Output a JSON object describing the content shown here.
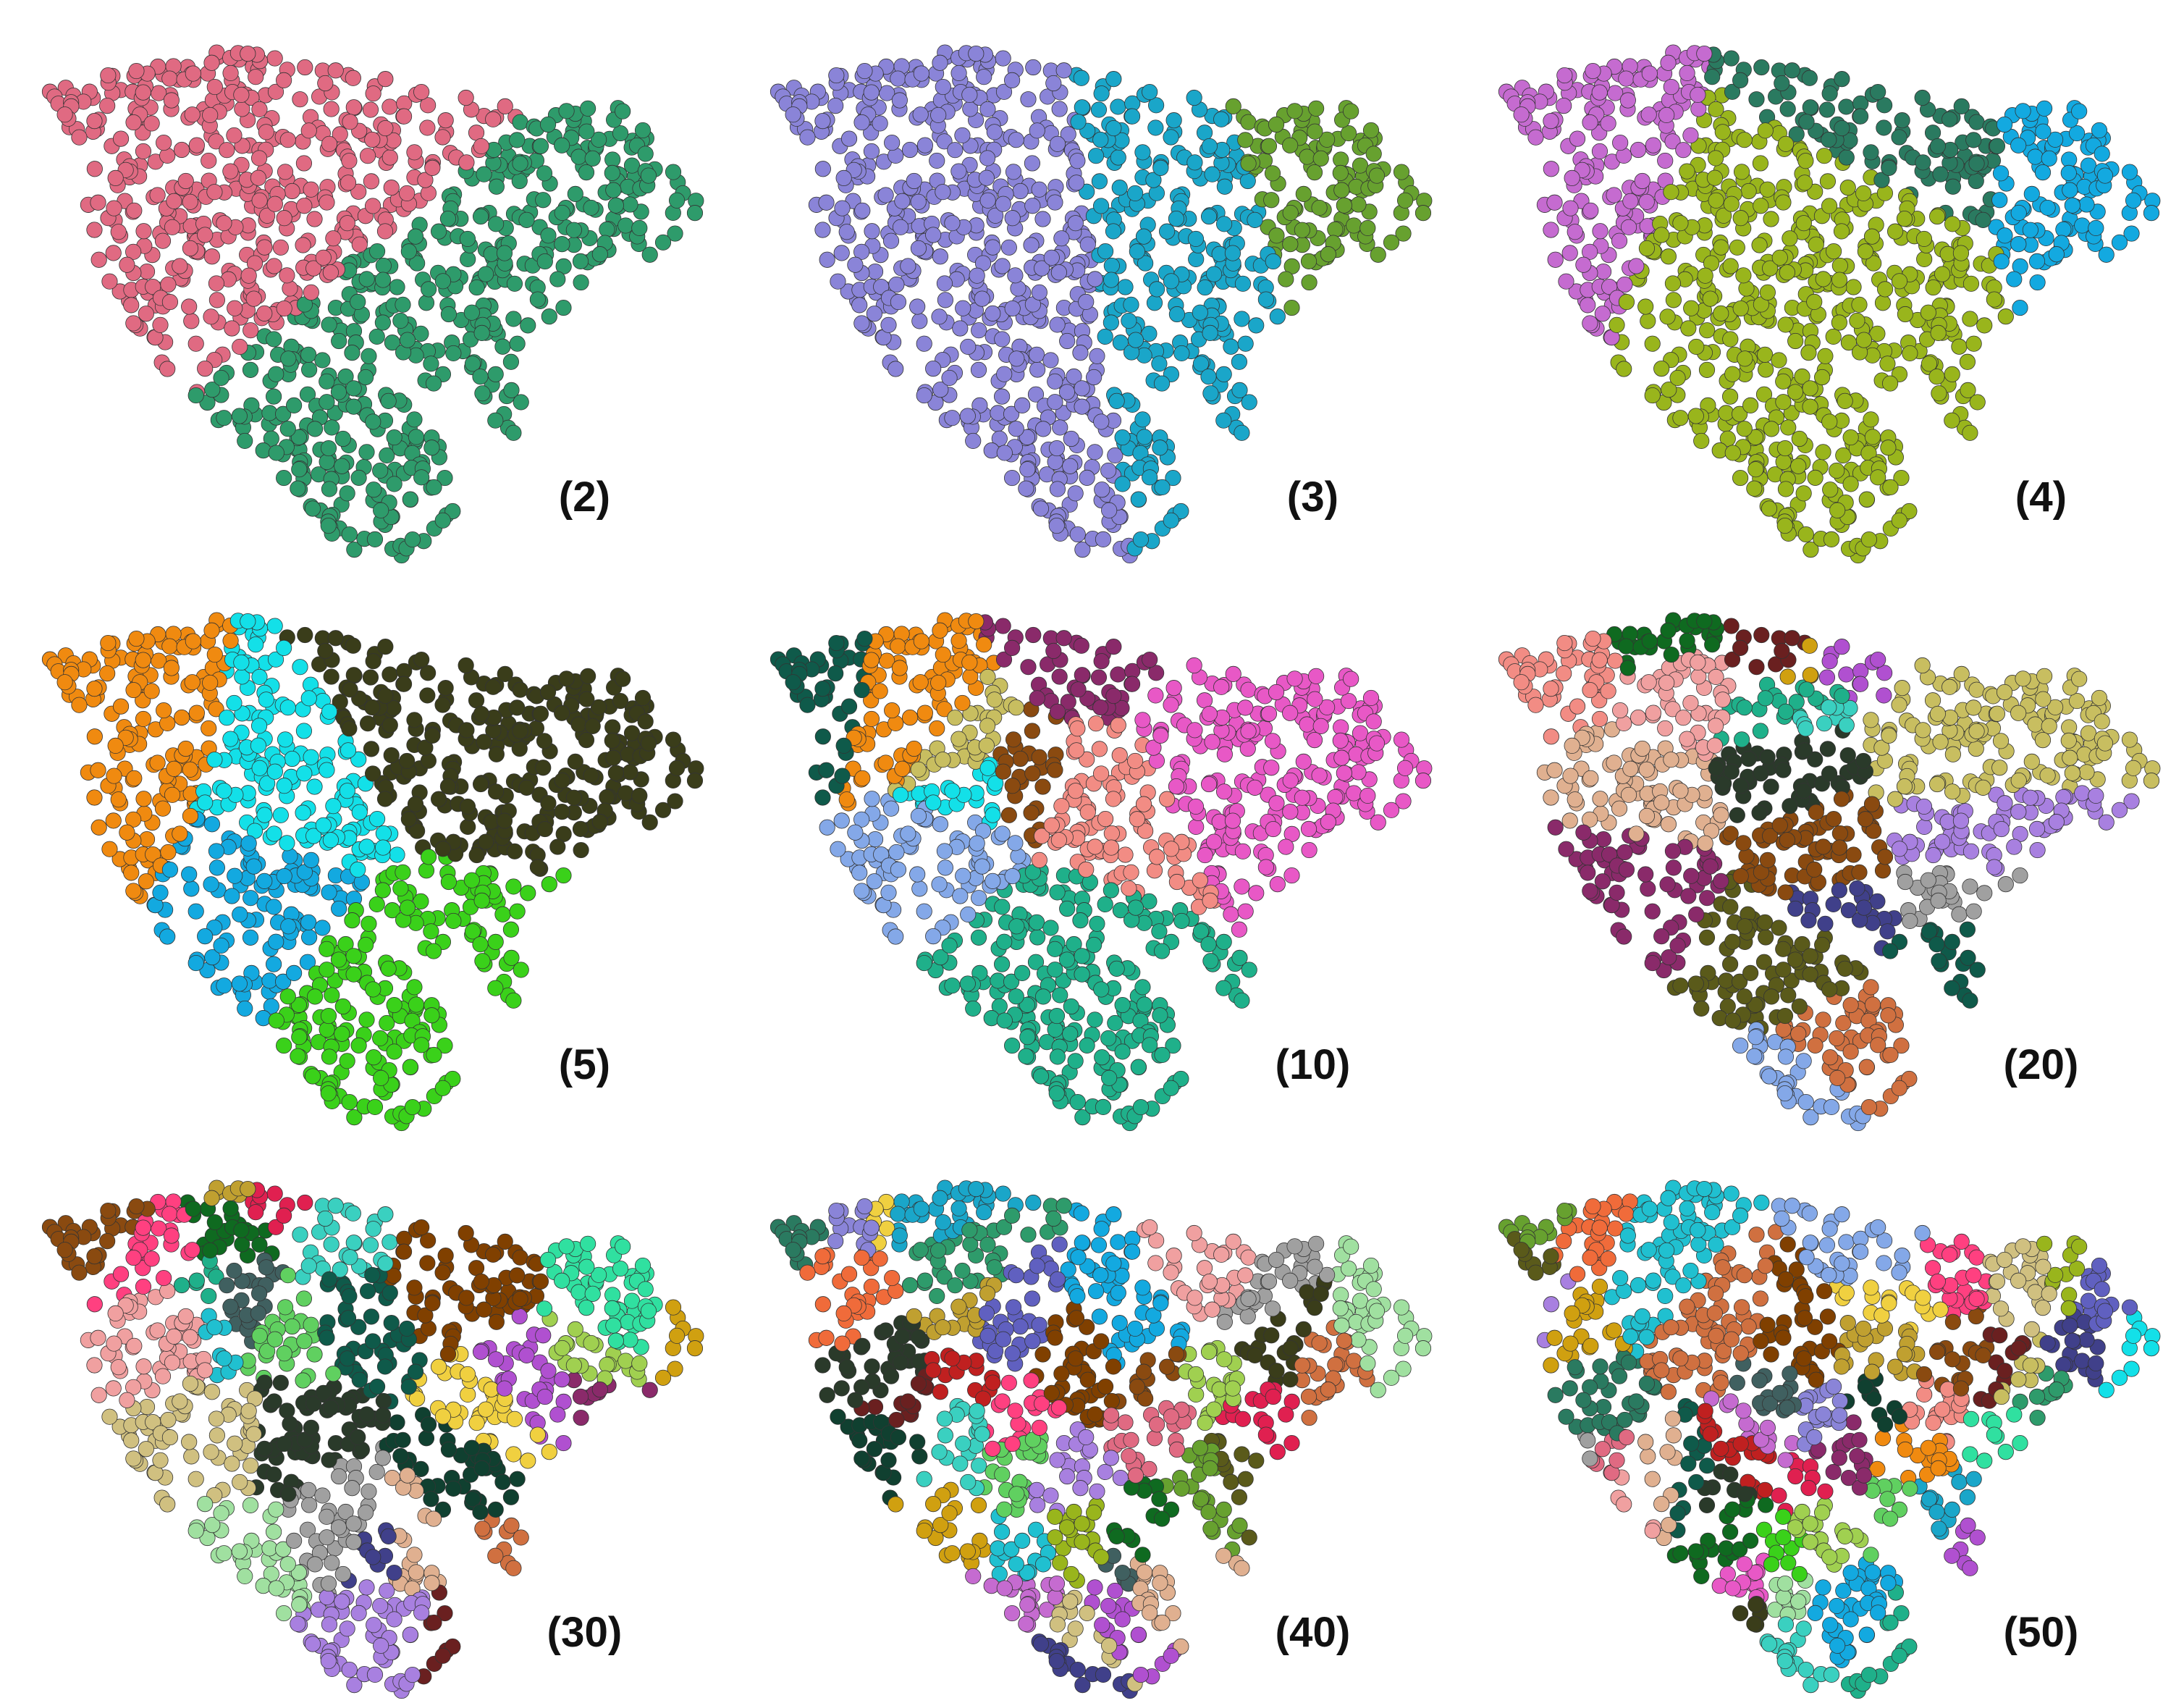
{
  "panels": [
    {
      "label": "(2)"
    },
    {
      "label": "(3)"
    },
    {
      "label": "(4)"
    },
    {
      "label": "(5)"
    },
    {
      "label": "(10)"
    },
    {
      "label": "(20)"
    },
    {
      "label": "(30)"
    },
    {
      "label": "(40)"
    },
    {
      "label": "(50)"
    }
  ]
}
